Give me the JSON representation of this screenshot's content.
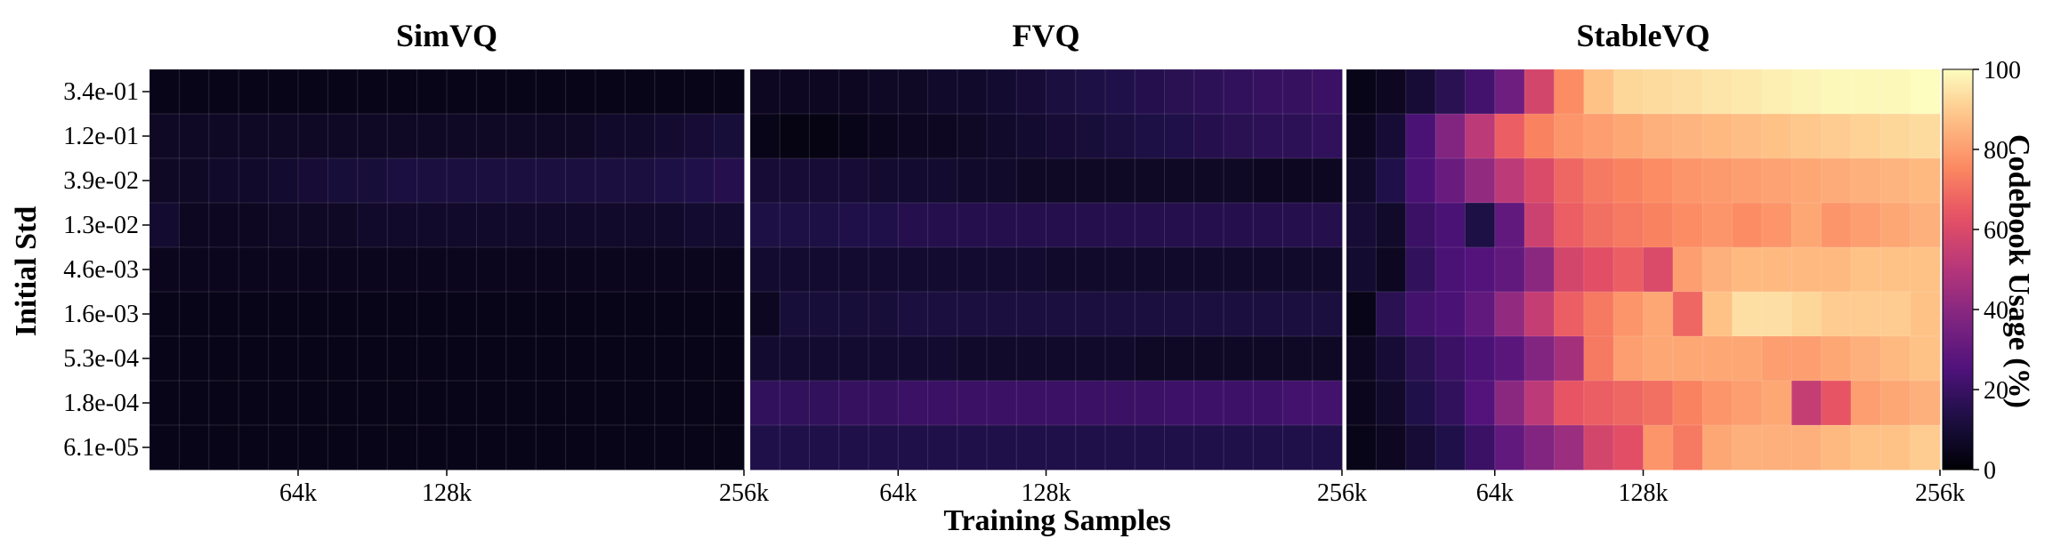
{
  "chart_data": {
    "type": "heatmap",
    "panels": [
      {
        "title": "SimVQ",
        "rows": [
          [
            4,
            4,
            4,
            4,
            4,
            4,
            4,
            4,
            4,
            4,
            4,
            4,
            4,
            4,
            4,
            4,
            4,
            4,
            4,
            4
          ],
          [
            7,
            7,
            7,
            7,
            7,
            7,
            7,
            7,
            7,
            7,
            7,
            7,
            7,
            7,
            7,
            8,
            8,
            9,
            10,
            11
          ],
          [
            7,
            7,
            8,
            8,
            9,
            10,
            11,
            11,
            12,
            12,
            12,
            12,
            12,
            12,
            12,
            12,
            12,
            13,
            14,
            15
          ],
          [
            9,
            6,
            6,
            6,
            7,
            7,
            7,
            8,
            8,
            8,
            8,
            8,
            8,
            8,
            8,
            8,
            8,
            8,
            9,
            9
          ],
          [
            5,
            5,
            5,
            5,
            5,
            5,
            5,
            5,
            5,
            5,
            5,
            5,
            5,
            5,
            5,
            5,
            5,
            5,
            5,
            5
          ],
          [
            4,
            4,
            4,
            4,
            4,
            4,
            4,
            4,
            4,
            4,
            4,
            4,
            4,
            4,
            4,
            4,
            4,
            4,
            4,
            4
          ],
          [
            4,
            4,
            4,
            4,
            4,
            4,
            4,
            4,
            4,
            4,
            4,
            4,
            4,
            4,
            4,
            4,
            4,
            4,
            4,
            4
          ],
          [
            4,
            4,
            4,
            4,
            4,
            4,
            4,
            4,
            4,
            4,
            4,
            4,
            4,
            4,
            4,
            4,
            4,
            4,
            4,
            4
          ],
          [
            4,
            4,
            4,
            4,
            4,
            4,
            4,
            4,
            4,
            4,
            4,
            4,
            4,
            4,
            4,
            4,
            4,
            4,
            4,
            4
          ]
        ]
      },
      {
        "title": "FVQ",
        "rows": [
          [
            6,
            6,
            6,
            6,
            7,
            7,
            8,
            8,
            9,
            10,
            12,
            13,
            14,
            15,
            16,
            17,
            18,
            19,
            19,
            20
          ],
          [
            4,
            3,
            3,
            4,
            5,
            6,
            6,
            7,
            8,
            9,
            10,
            11,
            12,
            13,
            14,
            15,
            16,
            17,
            17,
            18
          ],
          [
            10,
            10,
            10,
            10,
            9,
            9,
            9,
            8,
            8,
            7,
            7,
            7,
            7,
            7,
            7,
            7,
            7,
            6,
            6,
            6
          ],
          [
            13,
            13,
            13,
            14,
            14,
            15,
            15,
            15,
            15,
            15,
            15,
            15,
            15,
            15,
            15,
            15,
            15,
            15,
            15,
            15
          ],
          [
            9,
            9,
            9,
            9,
            9,
            9,
            9,
            9,
            9,
            9,
            8,
            8,
            8,
            8,
            8,
            8,
            8,
            8,
            8,
            8
          ],
          [
            6,
            11,
            11,
            11,
            11,
            12,
            12,
            12,
            12,
            12,
            12,
            12,
            12,
            12,
            12,
            12,
            12,
            12,
            12,
            12
          ],
          [
            9,
            9,
            9,
            9,
            9,
            9,
            9,
            8,
            8,
            8,
            8,
            8,
            8,
            7,
            7,
            7,
            7,
            7,
            7,
            7
          ],
          [
            18,
            18,
            18,
            19,
            19,
            20,
            20,
            20,
            20,
            20,
            20,
            20,
            20,
            20,
            21,
            21,
            21,
            21,
            22,
            22
          ],
          [
            14,
            14,
            14,
            14,
            14,
            14,
            14,
            14,
            14,
            14,
            14,
            14,
            14,
            14,
            14,
            14,
            14,
            14,
            14,
            14
          ]
        ]
      },
      {
        "title": "StableVQ",
        "rows": [
          [
            4,
            6,
            10,
            16,
            22,
            33,
            58,
            76,
            88,
            92,
            93,
            94,
            95,
            96,
            97,
            98,
            99,
            99,
            99,
            100
          ],
          [
            6,
            10,
            24,
            38,
            52,
            66,
            74,
            78,
            80,
            82,
            84,
            85,
            86,
            87,
            88,
            89,
            90,
            91,
            92,
            93
          ],
          [
            8,
            14,
            24,
            32,
            42,
            52,
            60,
            68,
            72,
            74,
            76,
            78,
            79,
            80,
            81,
            82,
            83,
            84,
            85,
            86
          ],
          [
            10,
            8,
            20,
            24,
            13,
            30,
            56,
            66,
            70,
            72,
            74,
            76,
            78,
            76,
            78,
            82,
            78,
            80,
            82,
            84
          ],
          [
            9,
            6,
            18,
            24,
            26,
            30,
            40,
            58,
            62,
            66,
            60,
            80,
            84,
            86,
            86,
            86,
            86,
            88,
            88,
            88
          ],
          [
            4,
            16,
            22,
            24,
            30,
            42,
            54,
            66,
            72,
            78,
            82,
            68,
            88,
            94,
            94,
            92,
            90,
            90,
            90,
            88
          ],
          [
            6,
            10,
            16,
            20,
            24,
            28,
            38,
            46,
            72,
            80,
            82,
            82,
            82,
            82,
            80,
            80,
            82,
            84,
            86,
            88
          ],
          [
            5,
            8,
            14,
            18,
            26,
            40,
            52,
            64,
            66,
            68,
            70,
            74,
            78,
            80,
            82,
            54,
            64,
            80,
            82,
            84
          ],
          [
            4,
            6,
            10,
            14,
            20,
            30,
            38,
            44,
            58,
            62,
            78,
            72,
            82,
            84,
            84,
            84,
            86,
            88,
            88,
            90
          ]
        ]
      }
    ],
    "y_tick_labels": [
      "3.4e-01",
      "1.2e-01",
      "3.9e-02",
      "1.3e-02",
      "4.6e-03",
      "1.6e-03",
      "5.3e-04",
      "1.8e-04",
      "6.1e-05"
    ],
    "x_tick_labels": [
      "64k",
      "128k",
      "256k"
    ],
    "x_tick_values": [
      64000,
      128000,
      256000
    ],
    "xlabel": "Training Samples",
    "ylabel": "Initial Std",
    "colorbar": {
      "label": "Codebook Usage (%)",
      "range": [
        0,
        100
      ],
      "ticks": [
        0,
        20,
        40,
        60,
        80,
        100
      ],
      "colormap": "magma"
    }
  }
}
